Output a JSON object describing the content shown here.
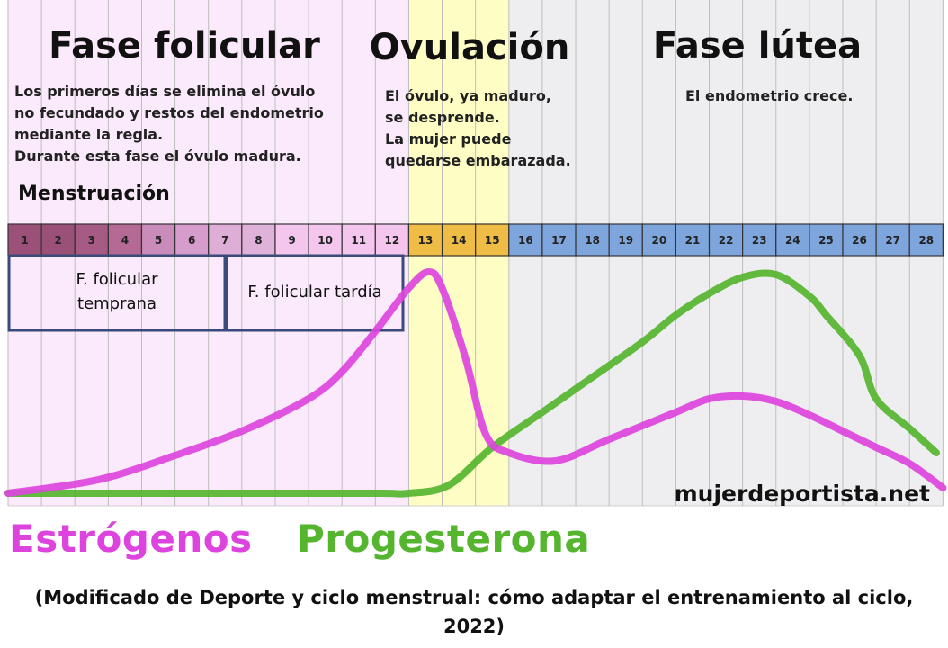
{
  "phases": {
    "follicular": {
      "title": "Fase folicular",
      "desc": [
        "Los primeros días se elimina el óvulo",
        "no fecundado y restos del endometrio",
        "mediante la regla.",
        "Durante esta fase el óvulo madura."
      ]
    },
    "ovulation": {
      "title": "Ovulación",
      "desc": [
        "El óvulo, ya maduro,",
        "se desprende.",
        "La mujer puede",
        "quedarse embarazada."
      ]
    },
    "luteal": {
      "title": "Fase lútea",
      "desc": [
        "El endometrio crece."
      ]
    }
  },
  "menstruation_label": "Menstruación",
  "subphases": {
    "early": [
      "F. folicular",
      "temprana"
    ],
    "late": "F. folicular tardía"
  },
  "watermark": "mujerdeportista.net",
  "legend": {
    "estrogen": "Estrógenos",
    "progesterone": "Progesterona"
  },
  "caption": [
    "(Modificado de Deporte y ciclo menstrual: cómo adaptar el entrenamiento al ciclo,",
    "2022)"
  ],
  "colors": {
    "estrogen": "#dd44dd",
    "progesterone": "#55b52f",
    "follicular_bg": "#fbeafb",
    "ovulation_bg": "#fdfdc4",
    "luteal_bg": "#eeeef0",
    "menstrual_day": [
      "#9b5078",
      "#9b5078",
      "#a65b85",
      "#b46a94",
      "#c98cba",
      "#d69ccb",
      "#deaed7",
      "#e0b2d9"
    ],
    "follicular_day": "#f4c6ee",
    "ovulation_day": "#efbd45",
    "luteal_day": "#7fa6dc",
    "subphase_border": "#3a4a7a"
  },
  "chart_data": {
    "type": "line",
    "x_label": "",
    "days": [
      1,
      2,
      3,
      4,
      5,
      6,
      7,
      8,
      9,
      10,
      11,
      12,
      13,
      14,
      15,
      16,
      17,
      18,
      19,
      20,
      21,
      22,
      23,
      24,
      25,
      26,
      27,
      28
    ],
    "y_range": [
      0,
      100
    ],
    "phases": [
      {
        "name": "Fase folicular",
        "days": [
          1,
          12
        ]
      },
      {
        "name": "Ovulación",
        "days": [
          13,
          15
        ]
      },
      {
        "name": "Fase lútea",
        "days": [
          16,
          28
        ]
      }
    ],
    "menstruation_days": [
      1,
      8
    ],
    "subphases": [
      {
        "name": "F. folicular temprana",
        "days": [
          1,
          6
        ]
      },
      {
        "name": "F. folicular tardía",
        "days": [
          7,
          12
        ]
      }
    ],
    "series": [
      {
        "name": "Estrógenos",
        "x": [
          0.5,
          3.2,
          5.5,
          7.5,
          9.5,
          10.5,
          11.5,
          12.5,
          13.1,
          13.5,
          14.2,
          14.8,
          15.5,
          16.9,
          18.5,
          20.5,
          21.5,
          22.5,
          23.5,
          24.5,
          25.5,
          26.5,
          27.5,
          28.5
        ],
        "y": [
          0,
          5,
          14,
          23,
          35,
          45,
          60,
          76,
          82,
          76,
          50,
          22,
          15,
          12,
          20,
          30,
          35,
          36,
          34,
          29,
          23,
          17,
          11,
          2
        ]
      },
      {
        "name": "Progesterona",
        "x": [
          0.5,
          3.0,
          6.0,
          9.0,
          11.7,
          12.5,
          13.7,
          15.0,
          16.5,
          18.0,
          19.5,
          20.5,
          21.5,
          22.5,
          23.5,
          24.5,
          25.0,
          26.0,
          26.5,
          27.5,
          28.3
        ],
        "y": [
          0,
          0,
          0,
          0,
          0,
          0,
          3,
          17,
          30,
          43,
          56,
          66,
          74,
          80,
          81,
          73,
          66,
          51,
          35,
          24,
          15
        ]
      }
    ]
  }
}
